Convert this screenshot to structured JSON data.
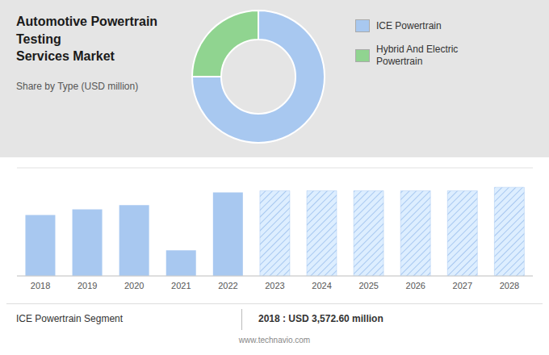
{
  "chart_data": [
    {
      "type": "pie",
      "title": "Automotive Powertrain Testing\nServices Market",
      "subtitle": "Share by Type (USD million)",
      "categories": [
        "ICE Powertrain",
        "Hybrid And Electric\nPowertrain"
      ],
      "values": [
        75,
        25
      ],
      "colors": [
        "#a8c8f0",
        "#90d490"
      ],
      "legend": "upper right"
    },
    {
      "type": "bar",
      "categories": [
        "2018",
        "2019",
        "2020",
        "2021",
        "2022",
        "2023",
        "2024",
        "2025",
        "2026",
        "2027",
        "2028"
      ],
      "values": [
        3572.6,
        3900,
        4150,
        1500,
        4900,
        5000,
        5000,
        5000,
        5000,
        5000,
        5200
      ],
      "colors": [
        "#a8c8f0",
        "#a8c8f0",
        "#a8c8f0",
        "#a8c8f0",
        "#a8c8f0",
        "#ddeeff",
        "#ddeeff",
        "#ddeeff",
        "#ddeeff",
        "#ddeeff",
        "#ddeeff"
      ],
      "ylim": [
        0,
        6344
      ],
      "yticks": [
        0,
        1586,
        3172,
        4758,
        6344
      ],
      "grid": true,
      "tick_labels": "x",
      "annotations": [
        "ICE Powertrain Segment",
        "2018 : USD 3,572.60 million",
        "www.technavio.com"
      ]
    }
  ]
}
